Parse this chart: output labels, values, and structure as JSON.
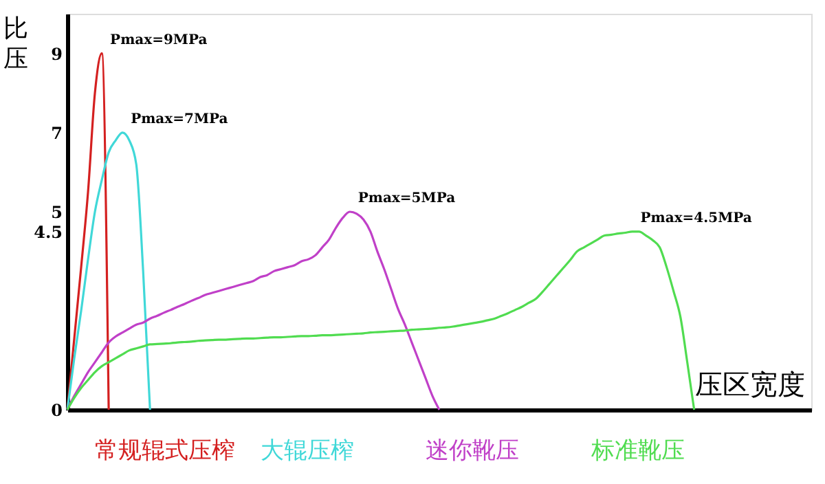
{
  "chart_data": {
    "type": "line",
    "xlabel": "压区宽度",
    "ylabel": "比压",
    "ylim": [
      0,
      10
    ],
    "yticks": [
      0,
      {
        "value": 4.5,
        "label": "4.5"
      },
      5,
      7,
      9
    ],
    "tick_labels": "y",
    "grid": false,
    "marker": "none",
    "line_style": "solid",
    "categories": [
      null,
      null,
      null,
      null,
      null,
      null,
      null,
      null,
      null,
      null,
      null,
      null,
      null,
      null,
      null,
      null,
      null,
      null,
      null,
      null,
      null,
      null,
      null,
      null,
      null,
      null,
      null,
      null,
      null,
      null,
      null,
      null,
      null,
      null,
      null,
      null,
      null,
      null,
      null,
      null,
      null,
      null,
      null,
      null,
      null,
      null,
      null,
      null,
      null,
      null,
      null,
      null,
      null,
      null,
      null,
      null,
      null,
      null,
      null,
      null,
      null,
      null,
      null,
      null,
      null,
      null,
      null,
      null,
      null,
      null,
      null,
      null,
      null,
      null,
      null,
      null,
      null,
      null,
      null,
      null,
      null,
      null,
      null,
      null,
      null,
      null,
      null,
      null,
      null,
      null,
      null,
      null,
      null,
      null,
      null,
      null,
      null,
      null,
      null,
      null,
      null,
      null,
      null,
      null,
      null,
      null,
      null,
      null,
      null
    ],
    "series": [
      {
        "name": "常规辊式压榨",
        "color": "#d42020",
        "values": [
          0,
          1.8,
          3.6,
          5.5,
          8,
          9,
          0,
          null,
          null,
          null,
          null,
          null,
          null,
          null,
          null,
          null,
          null,
          null,
          null,
          null,
          null,
          null,
          null,
          null,
          null,
          null,
          null,
          null,
          null,
          null,
          null,
          null,
          null,
          null,
          null,
          null,
          null,
          null,
          null,
          null,
          null,
          null,
          null,
          null,
          null,
          null,
          null,
          null,
          null,
          null,
          null,
          null,
          null,
          null,
          null,
          null,
          null,
          null,
          null,
          null,
          null,
          null,
          null,
          null,
          null,
          null,
          null,
          null,
          null,
          null,
          null,
          null,
          null,
          null,
          null,
          null,
          null,
          null,
          null,
          null,
          null,
          null,
          null,
          null,
          null,
          null,
          null,
          null,
          null,
          null,
          null,
          null,
          null,
          null,
          null,
          null,
          null,
          null,
          null,
          null,
          null,
          null,
          null,
          null,
          null,
          null,
          null,
          null,
          null
        ]
      },
      {
        "name": "大辊压榨",
        "color": "#40d8d8",
        "values": [
          0,
          1.3,
          2.5,
          3.8,
          5,
          5.8,
          6.5,
          6.8,
          7,
          6.8,
          6.2,
          3.5,
          0,
          null,
          null,
          null,
          null,
          null,
          null,
          null,
          null,
          null,
          null,
          null,
          null,
          null,
          null,
          null,
          null,
          null,
          null,
          null,
          null,
          null,
          null,
          null,
          null,
          null,
          null,
          null,
          null,
          null,
          null,
          null,
          null,
          null,
          null,
          null,
          null,
          null,
          null,
          null,
          null,
          null,
          null,
          null,
          null,
          null,
          null,
          null,
          null,
          null,
          null,
          null,
          null,
          null,
          null,
          null,
          null,
          null,
          null,
          null,
          null,
          null,
          null,
          null,
          null,
          null,
          null,
          null,
          null,
          null,
          null,
          null,
          null,
          null,
          null,
          null,
          null,
          null,
          null,
          null,
          null,
          null,
          null,
          null,
          null,
          null,
          null,
          null,
          null,
          null,
          null,
          null,
          null,
          null,
          null,
          null,
          null
        ]
      },
      {
        "name": "迷你靴压",
        "color": "#c040c8",
        "values": [
          0,
          0.35,
          0.65,
          0.95,
          1.2,
          1.45,
          1.7,
          1.85,
          1.95,
          2.05,
          2.15,
          2.2,
          2.3,
          2.37,
          2.45,
          2.52,
          2.6,
          2.67,
          2.75,
          2.82,
          2.9,
          2.95,
          3.0,
          3.05,
          3.1,
          3.15,
          3.2,
          3.25,
          3.35,
          3.4,
          3.5,
          3.55,
          3.6,
          3.65,
          3.75,
          3.8,
          3.9,
          4.1,
          4.3,
          4.6,
          4.85,
          5,
          4.95,
          4.8,
          4.5,
          4.0,
          3.55,
          3.05,
          2.55,
          2.15,
          1.7,
          1.25,
          0.8,
          0.35,
          0,
          null,
          null,
          null,
          null,
          null,
          null,
          null,
          null,
          null,
          null,
          null,
          null,
          null,
          null,
          null,
          null,
          null,
          null,
          null,
          null,
          null,
          null,
          null,
          null,
          null,
          null,
          null,
          null,
          null,
          null,
          null,
          null,
          null,
          null,
          null,
          null,
          null,
          null,
          null,
          null,
          null,
          null,
          null,
          null,
          null,
          null,
          null,
          null,
          null,
          null,
          null,
          null,
          null,
          null
        ]
      },
      {
        "name": "标准靴压",
        "color": "#50dc50",
        "values": [
          0,
          0.3,
          0.55,
          0.75,
          0.95,
          1.1,
          1.2,
          1.3,
          1.4,
          1.5,
          1.55,
          1.6,
          1.65,
          1.66,
          1.67,
          1.68,
          1.7,
          1.71,
          1.72,
          1.74,
          1.75,
          1.76,
          1.77,
          1.77,
          1.78,
          1.79,
          1.8,
          1.8,
          1.81,
          1.82,
          1.83,
          1.83,
          1.84,
          1.85,
          1.86,
          1.86,
          1.87,
          1.88,
          1.88,
          1.89,
          1.9,
          1.91,
          1.92,
          1.93,
          1.95,
          1.96,
          1.97,
          1.98,
          1.99,
          2.0,
          2.02,
          2.03,
          2.04,
          2.05,
          2.07,
          2.08,
          2.1,
          2.13,
          2.16,
          2.19,
          2.22,
          2.26,
          2.3,
          2.37,
          2.44,
          2.52,
          2.6,
          2.7,
          2.8,
          2.98,
          3.18,
          3.38,
          3.58,
          3.78,
          4.0,
          4.1,
          4.2,
          4.3,
          4.4,
          4.42,
          4.45,
          4.47,
          4.5,
          4.5,
          4.4,
          4.28,
          4.1,
          3.6,
          3.0,
          2.35,
          1.2,
          0,
          null,
          null,
          null,
          null,
          null,
          null,
          null,
          null,
          null,
          null,
          null,
          null,
          null,
          null,
          null,
          null,
          null
        ]
      }
    ],
    "annotations": [
      "Pmax=9MPa",
      "Pmax=7MPa",
      "Pmax=5MPa",
      "Pmax=4.5MPa"
    ]
  }
}
